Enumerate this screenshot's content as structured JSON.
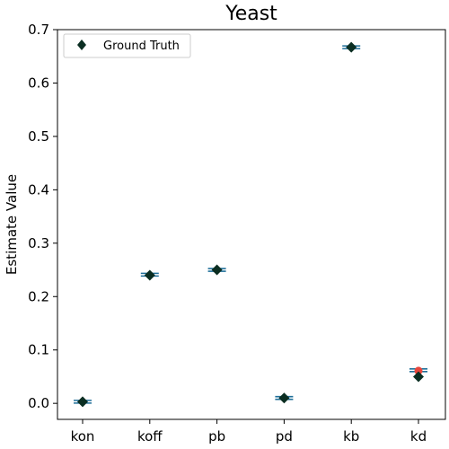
{
  "chart_data": {
    "type": "scatter",
    "title": "Yeast",
    "xlabel": "",
    "ylabel": "Estimate Value",
    "categories": [
      "kon",
      "koff",
      "pb",
      "pd",
      "kb",
      "kd"
    ],
    "ylim": [
      -0.03,
      0.7
    ],
    "yticks": [
      "0.0",
      "0.1",
      "0.2",
      "0.3",
      "0.4",
      "0.5",
      "0.6",
      "0.7"
    ],
    "grid": false,
    "legend_position": "top-left",
    "series": [
      {
        "name": "Ground Truth",
        "marker": "diamond",
        "color": "#0b2e22",
        "values": [
          0.003,
          0.24,
          0.25,
          0.01,
          0.667,
          0.05
        ]
      },
      {
        "marker": "hline",
        "color": "#1f6f99",
        "values": [
          0.003,
          0.241,
          0.25,
          0.01,
          0.667,
          0.062
        ]
      },
      {
        "marker": "circle",
        "color": "#e8463c",
        "values": [
          null,
          null,
          null,
          null,
          null,
          0.061
        ]
      }
    ]
  }
}
